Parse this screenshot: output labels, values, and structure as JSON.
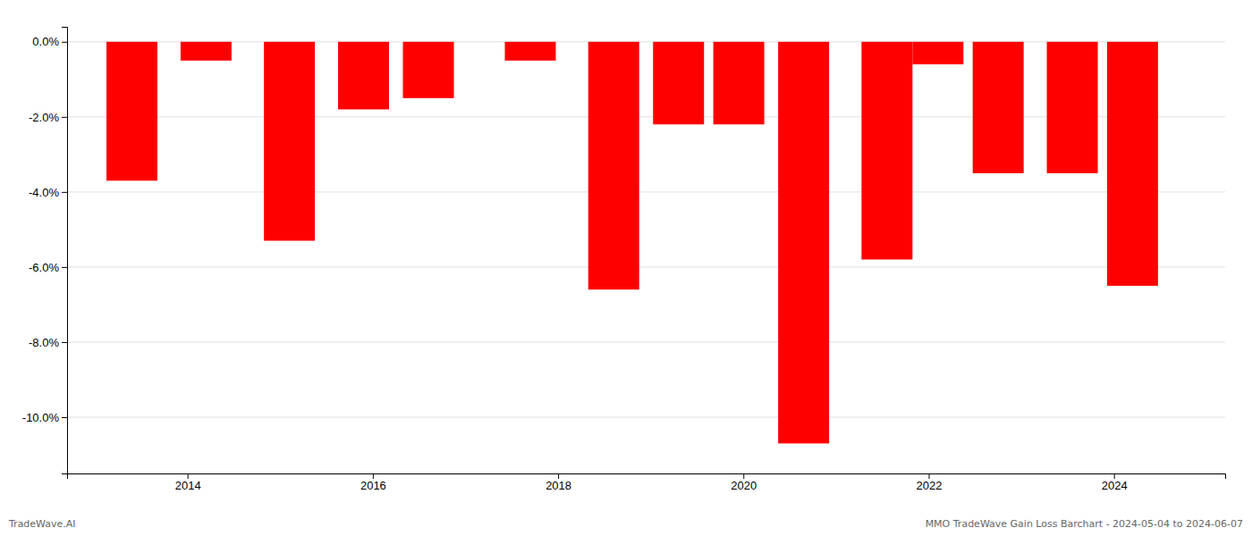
{
  "chart_data": {
    "type": "bar",
    "x": [
      2013.4,
      2014.2,
      2015.1,
      2015.9,
      2016.6,
      2017.7,
      2018.6,
      2019.3,
      2019.95,
      2020.65,
      2021.55,
      2022.1,
      2022.75,
      2023.55,
      2024.2
    ],
    "values": [
      -3.7,
      -0.5,
      -5.3,
      -1.8,
      -1.5,
      -0.5,
      -6.6,
      -2.2,
      -2.2,
      -10.7,
      -5.8,
      -0.6,
      -3.5,
      -3.5,
      -6.5
    ],
    "color": "#ff0000",
    "xlim": [
      2012.7,
      2025.2
    ],
    "ylim": [
      -11.5,
      0.4
    ],
    "xticks": [
      2014,
      2016,
      2018,
      2020,
      2022,
      2024
    ],
    "yticks": [
      {
        "value": 0.0,
        "label": "0.0%"
      },
      {
        "value": -2.0,
        "label": "-2.0%"
      },
      {
        "value": -4.0,
        "label": "-4.0%"
      },
      {
        "value": -6.0,
        "label": "-6.0%"
      },
      {
        "value": -8.0,
        "label": "-8.0%"
      },
      {
        "value": -10.0,
        "label": "-10.0%"
      }
    ],
    "grid": true,
    "annotations": [
      "TradeWave.AI",
      "MMO TradeWave Gain Loss Barchart - 2024-05-04 to 2024-06-07"
    ]
  }
}
